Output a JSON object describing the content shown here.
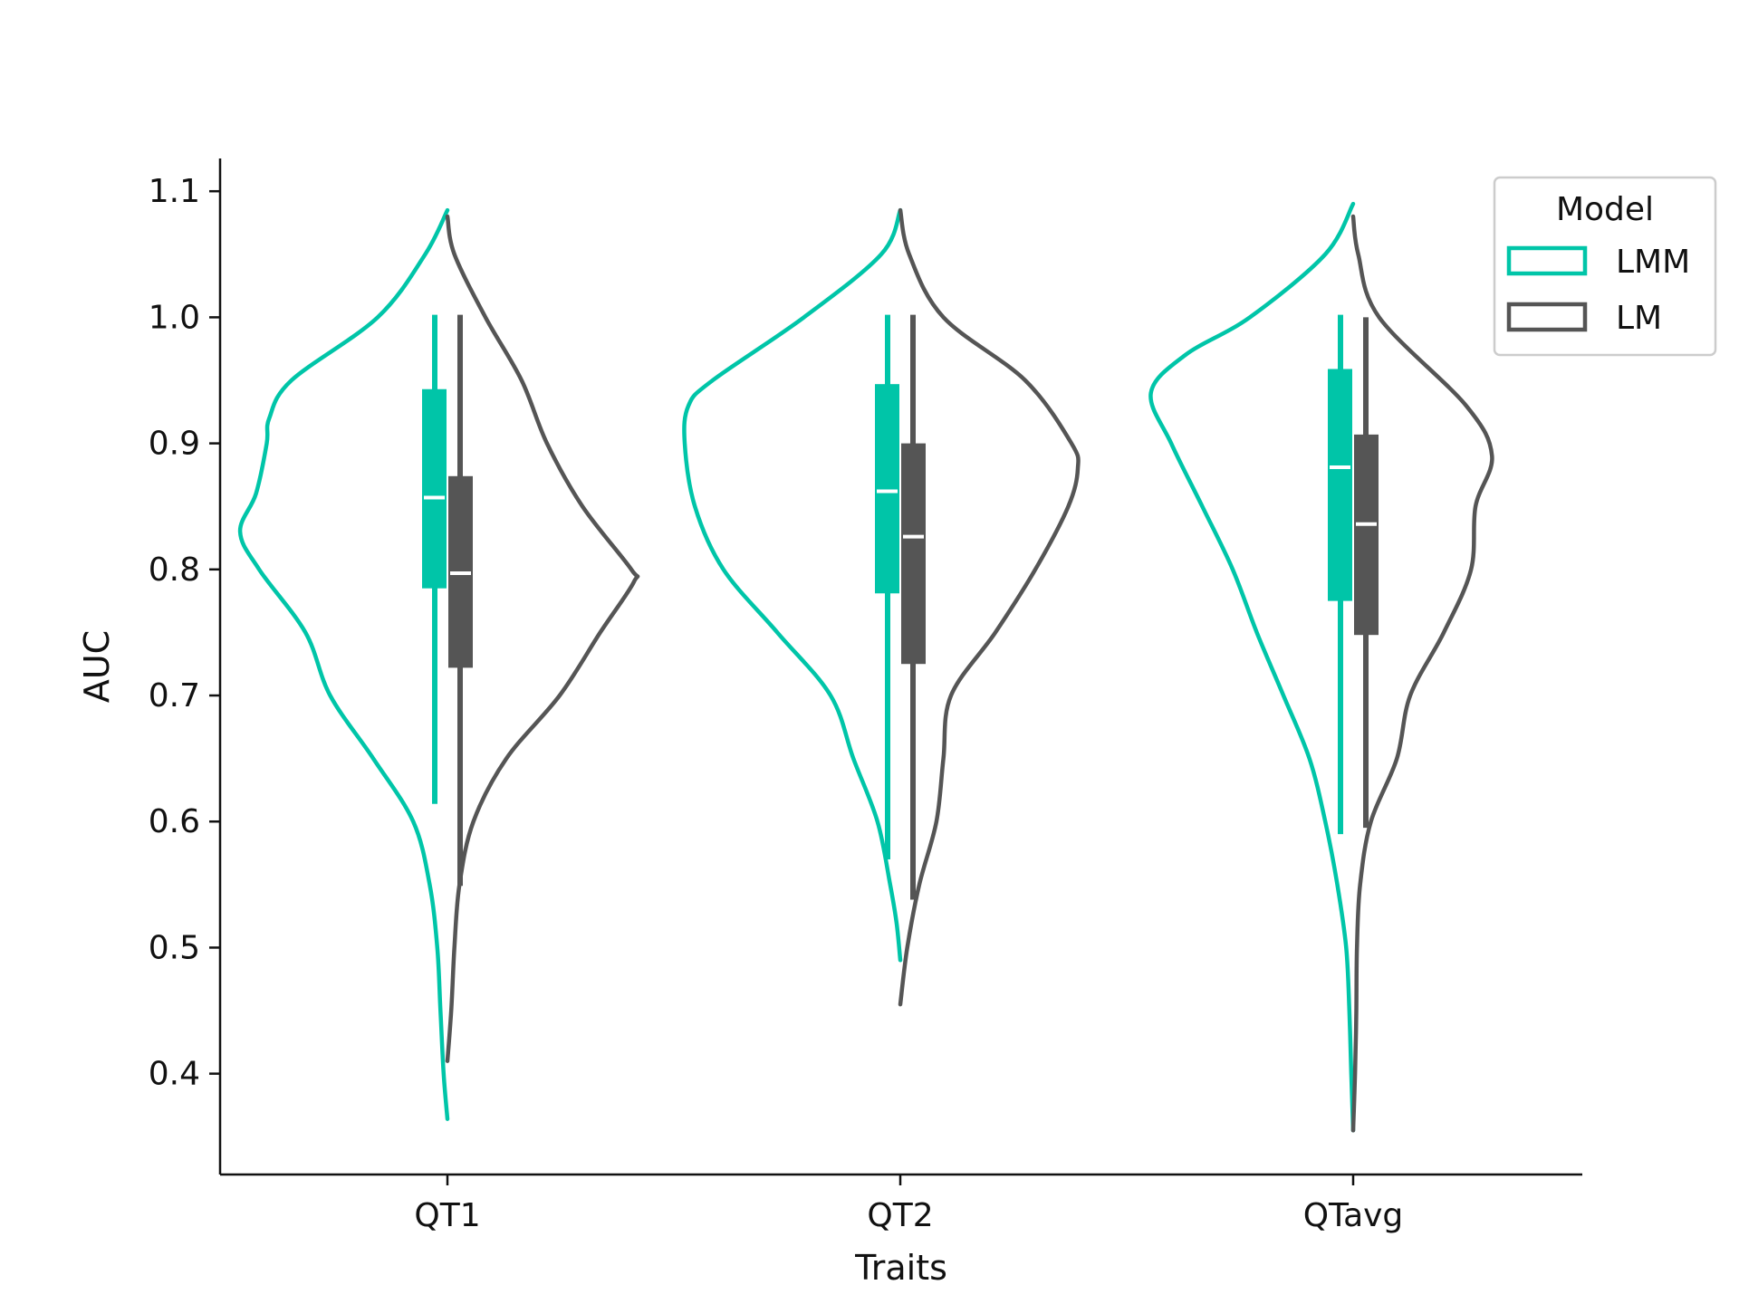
{
  "chart_data": {
    "type": "violin",
    "xlabel": "Traits",
    "ylabel": "AUC",
    "categories": [
      "QT1",
      "QT2",
      "QTavg"
    ],
    "y_ticks": [
      "0.4",
      "0.5",
      "0.6",
      "0.7",
      "0.8",
      "0.9",
      "1.0",
      "1.1"
    ],
    "y_tick_values": [
      0.4,
      0.5,
      0.6,
      0.7,
      0.8,
      0.9,
      1.0,
      1.1
    ],
    "ylim": [
      0.32,
      1.126
    ],
    "grid": false,
    "legend": {
      "title": "Model",
      "placement": "top-right",
      "entries": [
        {
          "label": "LMM",
          "color": "#00c5a8"
        },
        {
          "label": "LM",
          "color": "#555555"
        }
      ]
    },
    "series": [
      {
        "name": "LMM",
        "color": "#00c5a8",
        "side": "left",
        "groups": [
          {
            "category": "QT1",
            "median": 0.857,
            "q1": 0.785,
            "q3": 0.943,
            "whisker_low": 0.614,
            "whisker_high": 1.002,
            "density": [
              [
                0.364,
                0
              ],
              [
                0.4,
                0.006
              ],
              [
                0.45,
                0.011
              ],
              [
                0.5,
                0.016
              ],
              [
                0.55,
                0.028
              ],
              [
                0.6,
                0.054
              ],
              [
                0.65,
                0.117
              ],
              [
                0.7,
                0.185
              ],
              [
                0.75,
                0.224
              ],
              [
                0.8,
                0.297
              ],
              [
                0.83,
                0.327
              ],
              [
                0.86,
                0.302
              ],
              [
                0.9,
                0.285
              ],
              [
                0.92,
                0.281
              ],
              [
                0.95,
                0.246
              ],
              [
                1.0,
                0.11
              ],
              [
                1.05,
                0.035
              ],
              [
                1.085,
                0
              ]
            ]
          },
          {
            "category": "QT2",
            "median": 0.862,
            "q1": 0.781,
            "q3": 0.947,
            "whisker_low": 0.57,
            "whisker_high": 1.002,
            "density": [
              [
                0.49,
                0
              ],
              [
                0.52,
                0.006
              ],
              [
                0.55,
                0.016
              ],
              [
                0.6,
                0.036
              ],
              [
                0.65,
                0.074
              ],
              [
                0.7,
                0.11
              ],
              [
                0.75,
                0.194
              ],
              [
                0.8,
                0.279
              ],
              [
                0.85,
                0.324
              ],
              [
                0.9,
                0.34
              ],
              [
                0.93,
                0.334
              ],
              [
                0.95,
                0.296
              ],
              [
                1.0,
                0.152
              ],
              [
                1.05,
                0.03
              ],
              [
                1.085,
                0
              ]
            ]
          },
          {
            "category": "QTavg",
            "median": 0.881,
            "q1": 0.775,
            "q3": 0.959,
            "whisker_low": 0.59,
            "whisker_high": 1.002,
            "density": [
              [
                0.355,
                0
              ],
              [
                0.4,
                0.003
              ],
              [
                0.45,
                0.006
              ],
              [
                0.5,
                0.011
              ],
              [
                0.55,
                0.025
              ],
              [
                0.6,
                0.044
              ],
              [
                0.65,
                0.069
              ],
              [
                0.7,
                0.11
              ],
              [
                0.75,
                0.152
              ],
              [
                0.8,
                0.19
              ],
              [
                0.85,
                0.238
              ],
              [
                0.9,
                0.287
              ],
              [
                0.94,
                0.319
              ],
              [
                0.97,
                0.265
              ],
              [
                1.0,
                0.163
              ],
              [
                1.05,
                0.044
              ],
              [
                1.09,
                0
              ]
            ]
          }
        ]
      },
      {
        "name": "LM",
        "color": "#555555",
        "side": "right",
        "groups": [
          {
            "category": "QT1",
            "median": 0.797,
            "q1": 0.722,
            "q3": 0.874,
            "whisker_low": 0.549,
            "whisker_high": 1.002,
            "density": [
              [
                0.41,
                0
              ],
              [
                0.45,
                0.006
              ],
              [
                0.5,
                0.011
              ],
              [
                0.55,
                0.019
              ],
              [
                0.6,
                0.041
              ],
              [
                0.65,
                0.093
              ],
              [
                0.7,
                0.177
              ],
              [
                0.75,
                0.241
              ],
              [
                0.79,
                0.294
              ],
              [
                0.8,
                0.29
              ],
              [
                0.85,
                0.213
              ],
              [
                0.9,
                0.157
              ],
              [
                0.95,
                0.117
              ],
              [
                1.0,
                0.06
              ],
              [
                1.05,
                0.011
              ],
              [
                1.08,
                0
              ]
            ]
          },
          {
            "category": "QT2",
            "median": 0.826,
            "q1": 0.725,
            "q3": 0.9,
            "whisker_low": 0.538,
            "whisker_high": 1.002,
            "density": [
              [
                0.455,
                0
              ],
              [
                0.5,
                0.011
              ],
              [
                0.55,
                0.03
              ],
              [
                0.6,
                0.057
              ],
              [
                0.65,
                0.068
              ],
              [
                0.7,
                0.08
              ],
              [
                0.75,
                0.15
              ],
              [
                0.8,
                0.213
              ],
              [
                0.85,
                0.265
              ],
              [
                0.88,
                0.28
              ],
              [
                0.9,
                0.27
              ],
              [
                0.95,
                0.197
              ],
              [
                1.0,
                0.068
              ],
              [
                1.05,
                0.014
              ],
              [
                1.085,
                0
              ]
            ]
          },
          {
            "category": "QTavg",
            "median": 0.836,
            "q1": 0.748,
            "q3": 0.907,
            "whisker_low": 0.595,
            "whisker_high": 1.0,
            "density": [
              [
                0.355,
                0
              ],
              [
                0.4,
                0.003
              ],
              [
                0.45,
                0.005
              ],
              [
                0.5,
                0.006
              ],
              [
                0.55,
                0.011
              ],
              [
                0.6,
                0.028
              ],
              [
                0.65,
                0.069
              ],
              [
                0.7,
                0.09
              ],
              [
                0.75,
                0.143
              ],
              [
                0.8,
                0.186
              ],
              [
                0.85,
                0.193
              ],
              [
                0.89,
                0.219
              ],
              [
                0.93,
                0.178
              ],
              [
                1.0,
                0.041
              ],
              [
                1.05,
                0.008
              ],
              [
                1.08,
                0
              ]
            ]
          }
        ]
      }
    ]
  }
}
